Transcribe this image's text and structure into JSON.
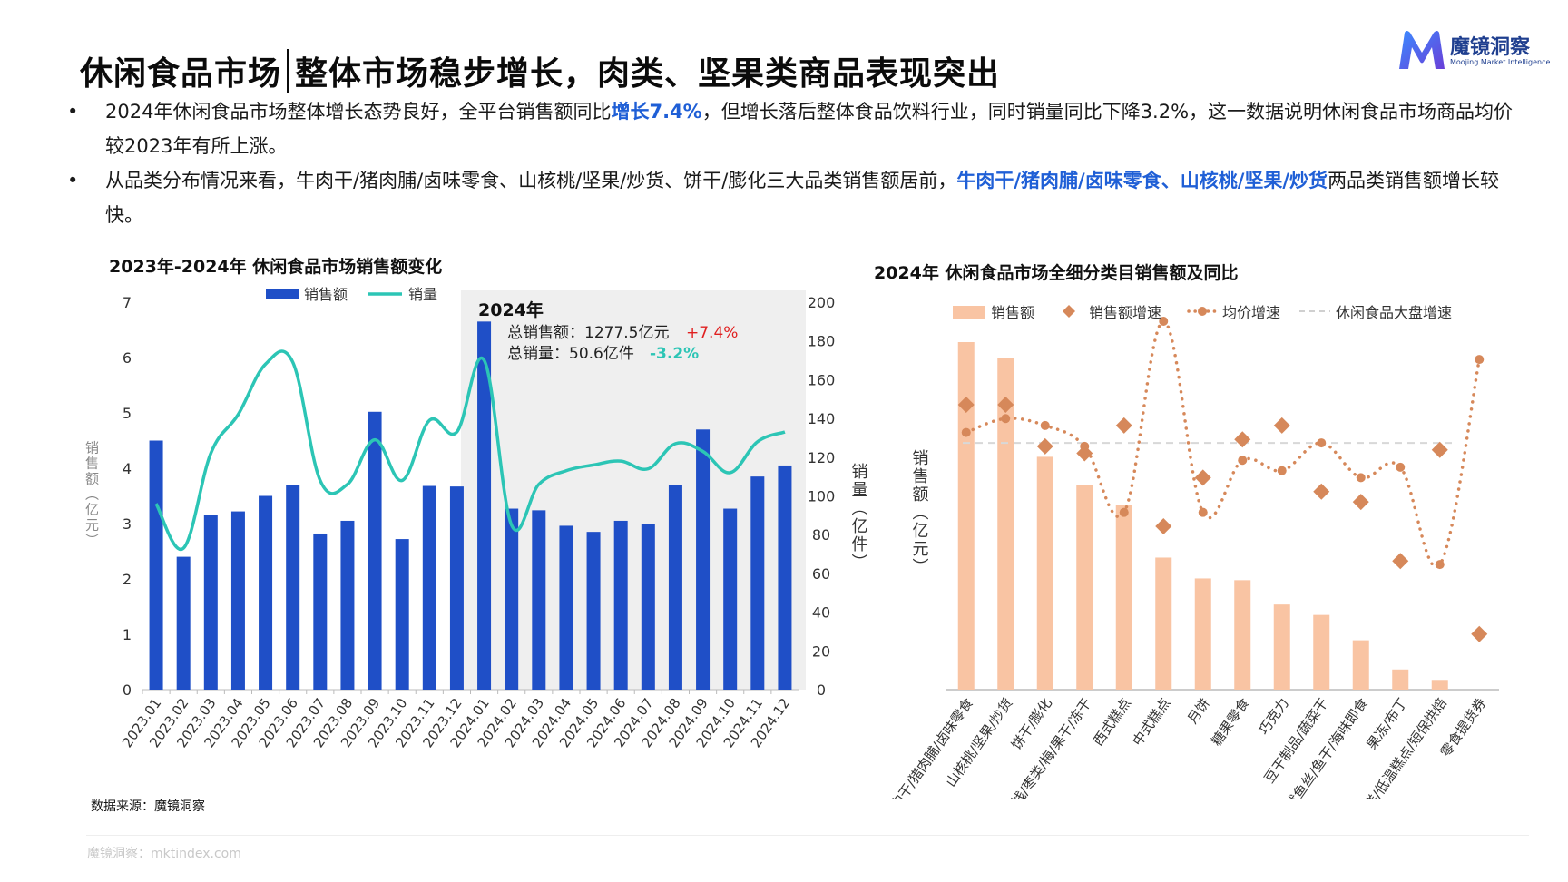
{
  "header": {
    "title_left": "休闲食品市场",
    "title_right": "整体市场稳步增长，肉类、坚果类商品表现突出",
    "logo_name": "魔镜洞察",
    "logo_sub": "Moojing Market Intelligence"
  },
  "bullets": [
    {
      "dot": "•",
      "pre": "2024年休闲食品市场整体增长态势良好，全平台销售额同比",
      "hl": "增长7.4%",
      "post": "，但增长落后整体食品饮料行业，同时销量同比下降3.2%，这一数据说明休闲食品市场商品均价较2023年有所上涨。"
    },
    {
      "dot": "•",
      "pre": "从品类分布情况来看，牛肉干/猪肉脯/卤味零食、山核桃/坚果/炒货、饼干/膨化三大品类销售额居前，",
      "hl": "牛肉干/猪肉脯/卤味零食、山核桃/坚果/炒货",
      "post": "两品类销售额增长较快。"
    }
  ],
  "source": "数据来源：魔镜洞察",
  "footer": "魔镜洞察：mktindex.com",
  "colors": {
    "bar_blue": "#1f4fc7",
    "line_teal": "#2cc5b5",
    "bar_peach": "#f9c4a3",
    "marker_orange": "#d6885a",
    "highlight_bg": "#efefef"
  },
  "chart_data": [
    {
      "type": "bar",
      "title": "2023年-2024年 休闲食品市场销售额变化",
      "ylabel": "销售额（亿元）",
      "y2label": "销量（亿件）",
      "ylim": [
        0,
        7
      ],
      "y2lim": [
        0,
        200
      ],
      "yticks": [
        "0",
        "1",
        "2",
        "3",
        "4",
        "5",
        "6",
        "7"
      ],
      "y2ticks": [
        "0",
        "20",
        "40",
        "60",
        "80",
        "100",
        "120",
        "140",
        "160",
        "180",
        "200"
      ],
      "legend_position": "top",
      "categories": [
        "2023.01",
        "2023.02",
        "2023.03",
        "2023.04",
        "2023.05",
        "2023.06",
        "2023.07",
        "2023.08",
        "2023.09",
        "2023.10",
        "2023.11",
        "2023.12",
        "2024.01",
        "2024.02",
        "2024.03",
        "2024.04",
        "2024.05",
        "2024.06",
        "2024.07",
        "2024.08",
        "2024.09",
        "2024.10",
        "2024.11",
        "2024.12"
      ],
      "series": [
        {
          "name": "销售额",
          "type": "bar",
          "axis": "left",
          "values": [
            4.5,
            2.4,
            3.15,
            3.22,
            3.5,
            3.7,
            2.82,
            3.05,
            5.02,
            2.72,
            3.68,
            3.67,
            6.65,
            3.27,
            3.24,
            2.96,
            2.85,
            3.05,
            3.0,
            3.7,
            4.7,
            3.27,
            3.85,
            4.05
          ]
        },
        {
          "name": "销量",
          "type": "line",
          "axis": "right",
          "values": [
            96,
            73,
            122,
            142,
            168,
            169,
            108,
            106,
            129,
            108,
            139,
            133,
            170,
            85,
            106,
            113,
            116,
            118,
            114,
            127,
            123,
            112,
            128,
            133
          ]
        }
      ],
      "annotation": {
        "title": "2024年",
        "line1_label": "总销售额：1277.5亿元",
        "line1_change": "+7.4%",
        "line2_label": "总销量：50.6亿件",
        "line2_change": "-3.2%"
      }
    },
    {
      "type": "bar",
      "title": "2024年 休闲食品市场全细分类目销售额及同比",
      "ylabel": "销售额（亿元）",
      "legend_position": "top",
      "categories": [
        "牛肉干/猪肉脯/卤味零食",
        "山核桃/坚果/炒货",
        "饼干/膨化",
        "蜜饯/枣类/梅/果干/冻干",
        "西式糕点",
        "中式糕点",
        "月饼",
        "糖果零食",
        "巧克力",
        "豆干制品/蔬菜干",
        "鱿鱼丝/鱼干/海味即食",
        "果冻/布丁",
        "新鲜蛋糕/低温糕点/短保烘焙",
        "零食提货券"
      ],
      "series": [
        {
          "name": "销售额",
          "type": "bar",
          "values": [
            100,
            95.5,
            67,
            59,
            53,
            38,
            32,
            31.5,
            24.5,
            21.5,
            14.2,
            5.8,
            2.8,
            0
          ]
        },
        {
          "name": "销售额增速",
          "type": "scatter",
          "values": [
            82,
            82,
            70,
            68,
            76,
            47,
            61,
            72,
            76,
            57,
            54,
            37,
            69,
            16
          ]
        },
        {
          "name": "均价增速",
          "type": "line",
          "values": [
            74,
            78,
            76,
            70,
            51,
            106,
            51,
            66,
            63,
            71,
            61,
            64,
            36,
            95
          ]
        },
        {
          "name": "休闲食品大盘增速",
          "type": "line",
          "dashed": true,
          "values": [
            71,
            71,
            71,
            71,
            71,
            71,
            71,
            71,
            71,
            71,
            71,
            71,
            71,
            71
          ]
        }
      ]
    }
  ]
}
